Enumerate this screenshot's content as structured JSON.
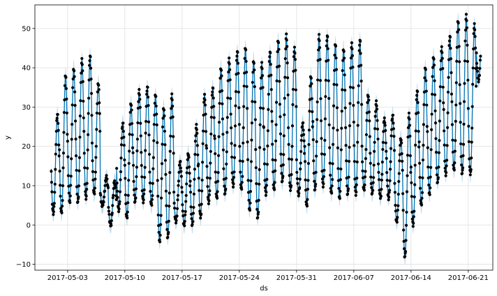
{
  "chart_data": {
    "type": "scatter",
    "title": "",
    "xlabel": "ds",
    "ylabel": "y",
    "x_range": [
      "2017-04-29",
      "2017-06-24"
    ],
    "ylim": [
      -11.5,
      56
    ],
    "grid": true,
    "x_ticks": [
      "2017-05-03",
      "2017-05-10",
      "2017-05-17",
      "2017-05-24",
      "2017-05-31",
      "2017-06-07",
      "2017-06-14",
      "2017-06-21"
    ],
    "y_ticks": [
      -10,
      0,
      10,
      20,
      30,
      40,
      50
    ],
    "colors": {
      "observed": "#000000",
      "forecast": "#0072B2",
      "interval": "#0072B2",
      "grid": "#e0e0e0"
    },
    "data_start": "2017-05-01",
    "data_end": "2017-06-22",
    "daily_extremes": [
      {
        "date": "2017-05-01",
        "min": 3,
        "max": 28
      },
      {
        "date": "2017-05-02",
        "min": 3,
        "max": 38
      },
      {
        "date": "2017-05-03",
        "min": 6,
        "max": 40
      },
      {
        "date": "2017-05-04",
        "min": 6,
        "max": 42
      },
      {
        "date": "2017-05-05",
        "min": 7,
        "max": 43
      },
      {
        "date": "2017-05-06",
        "min": 8,
        "max": 36
      },
      {
        "date": "2017-05-07",
        "min": 5,
        "max": 12
      },
      {
        "date": "2017-05-08",
        "min": 0,
        "max": 11
      },
      {
        "date": "2017-05-09",
        "min": 4,
        "max": 26
      },
      {
        "date": "2017-05-10",
        "min": 2,
        "max": 31
      },
      {
        "date": "2017-05-11",
        "min": 6,
        "max": 34
      },
      {
        "date": "2017-05-12",
        "min": 6,
        "max": 35
      },
      {
        "date": "2017-05-13",
        "min": 5,
        "max": 33
      },
      {
        "date": "2017-05-14",
        "min": -4,
        "max": 30
      },
      {
        "date": "2017-05-15",
        "min": -3,
        "max": 33
      },
      {
        "date": "2017-05-16",
        "min": 1,
        "max": 16
      },
      {
        "date": "2017-05-17",
        "min": 0,
        "max": 18
      },
      {
        "date": "2017-05-18",
        "min": 0,
        "max": 25
      },
      {
        "date": "2017-05-19",
        "min": 2,
        "max": 33
      },
      {
        "date": "2017-05-20",
        "min": 6,
        "max": 35
      },
      {
        "date": "2017-05-21",
        "min": 7,
        "max": 40
      },
      {
        "date": "2017-05-22",
        "min": 8,
        "max": 42
      },
      {
        "date": "2017-05-23",
        "min": 10,
        "max": 44
      },
      {
        "date": "2017-05-24",
        "min": 9,
        "max": 45
      },
      {
        "date": "2017-05-25",
        "min": 4,
        "max": 42
      },
      {
        "date": "2017-05-26",
        "min": 2,
        "max": 41
      },
      {
        "date": "2017-05-27",
        "min": 8,
        "max": 44
      },
      {
        "date": "2017-05-28",
        "min": 9,
        "max": 47
      },
      {
        "date": "2017-05-29",
        "min": 11,
        "max": 48
      },
      {
        "date": "2017-05-30",
        "min": 9,
        "max": 45
      },
      {
        "date": "2017-05-31",
        "min": 8,
        "max": 26
      },
      {
        "date": "2017-06-01",
        "min": 5,
        "max": 38
      },
      {
        "date": "2017-06-02",
        "min": 9,
        "max": 48
      },
      {
        "date": "2017-06-03",
        "min": 10,
        "max": 48
      },
      {
        "date": "2017-06-04",
        "min": 8,
        "max": 46
      },
      {
        "date": "2017-06-05",
        "min": 7,
        "max": 45
      },
      {
        "date": "2017-06-06",
        "min": 8,
        "max": 46
      },
      {
        "date": "2017-06-07",
        "min": 8,
        "max": 47
      },
      {
        "date": "2017-06-08",
        "min": 9,
        "max": 33
      },
      {
        "date": "2017-06-09",
        "min": 8,
        "max": 31
      },
      {
        "date": "2017-06-10",
        "min": 7,
        "max": 27
      },
      {
        "date": "2017-06-11",
        "min": 7,
        "max": 28
      },
      {
        "date": "2017-06-12",
        "min": 1,
        "max": 22
      },
      {
        "date": "2017-06-13",
        "min": -8,
        "max": 28
      },
      {
        "date": "2017-06-14",
        "min": 0,
        "max": 34
      },
      {
        "date": "2017-06-15",
        "min": 5,
        "max": 40
      },
      {
        "date": "2017-06-16",
        "min": 8,
        "max": 43
      },
      {
        "date": "2017-06-17",
        "min": 11,
        "max": 45
      },
      {
        "date": "2017-06-18",
        "min": 13,
        "max": 48
      },
      {
        "date": "2017-06-19",
        "min": 14,
        "max": 52
      },
      {
        "date": "2017-06-20",
        "min": 13,
        "max": 53
      },
      {
        "date": "2017-06-21",
        "min": 13,
        "max": 51
      },
      {
        "date": "2017-06-22",
        "min": 37,
        "max": 51
      }
    ]
  }
}
